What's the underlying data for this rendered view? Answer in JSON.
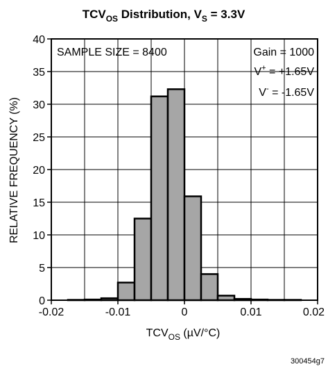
{
  "chart_data": {
    "type": "bar",
    "title": {
      "main": "TCV",
      "sub": "OS",
      "rest": " Distribution, V",
      "sub2": "S",
      "rest2": " = 3.3V"
    },
    "xlabel": {
      "main": "TCV",
      "sub": "OS",
      "rest": " (µV/°C)"
    },
    "ylabel": "RELATIVE FREQUENCY (%)",
    "xlim": [
      -0.02,
      0.02
    ],
    "ylim": [
      0,
      40
    ],
    "xticks": [
      -0.02,
      -0.01,
      0,
      0.01,
      0.02
    ],
    "xtick_labels": [
      "-0.02",
      "-0.01",
      "0",
      "0.01",
      "0.02"
    ],
    "yticks": [
      0,
      5,
      10,
      15,
      20,
      25,
      30,
      35,
      40
    ],
    "ytick_labels": [
      "0",
      "5",
      "10",
      "15",
      "20",
      "25",
      "30",
      "35",
      "40"
    ],
    "grid": true,
    "bin_width": 0.0025,
    "bins": [
      {
        "x0": -0.0175,
        "value": 0.05
      },
      {
        "x0": -0.015,
        "value": 0.1
      },
      {
        "x0": -0.0125,
        "value": 0.3
      },
      {
        "x0": -0.01,
        "value": 2.7
      },
      {
        "x0": -0.0075,
        "value": 12.5
      },
      {
        "x0": -0.005,
        "value": 31.2
      },
      {
        "x0": -0.0025,
        "value": 32.3
      },
      {
        "x0": 0.0,
        "value": 15.9
      },
      {
        "x0": 0.0025,
        "value": 4.0
      },
      {
        "x0": 0.005,
        "value": 0.7
      },
      {
        "x0": 0.0075,
        "value": 0.2
      },
      {
        "x0": 0.01,
        "value": 0.1
      },
      {
        "x0": 0.0125,
        "value": 0.05
      },
      {
        "x0": 0.015,
        "value": 0.05
      }
    ],
    "annotations": {
      "sample_size": "SAMPLE SIZE = 8400",
      "gain": "Gain = 1000",
      "vplus": {
        "main": "V",
        "sup": "+",
        "rest": " = +1.65V"
      },
      "vminus": {
        "main": "V",
        "sup": "-",
        "rest": " = -1.65V"
      }
    },
    "figure_id": "300454g7",
    "colors": {
      "bar_fill": "#a6a6a6",
      "bar_edge": "#000000",
      "grid": "#000000",
      "background": "#ffffff"
    }
  }
}
